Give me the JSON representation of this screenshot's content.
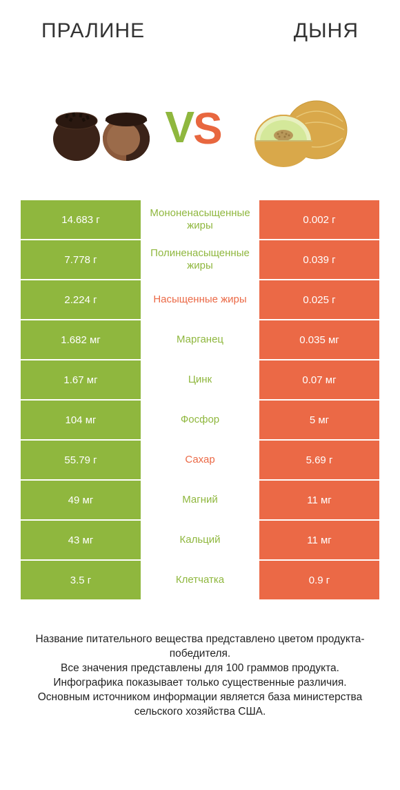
{
  "colors": {
    "green": "#8fb73e",
    "orange": "#eb6946",
    "text": "#333333"
  },
  "header": {
    "left": "ПРАЛИНЕ",
    "right": "ДЫНЯ"
  },
  "vs": {
    "v": "V",
    "s": "S"
  },
  "rows": [
    {
      "left": "14.683 г",
      "mid": "Мононенасыщенные жиры",
      "right": "0.002 г",
      "winner": "left"
    },
    {
      "left": "7.778 г",
      "mid": "Полиненасыщенные жиры",
      "right": "0.039 г",
      "winner": "left"
    },
    {
      "left": "2.224 г",
      "mid": "Насыщенные жиры",
      "right": "0.025 г",
      "winner": "right"
    },
    {
      "left": "1.682 мг",
      "mid": "Марганец",
      "right": "0.035 мг",
      "winner": "left"
    },
    {
      "left": "1.67 мг",
      "mid": "Цинк",
      "right": "0.07 мг",
      "winner": "left"
    },
    {
      "left": "104 мг",
      "mid": "Фосфор",
      "right": "5 мг",
      "winner": "left"
    },
    {
      "left": "55.79 г",
      "mid": "Сахар",
      "right": "5.69 г",
      "winner": "right"
    },
    {
      "left": "49 мг",
      "mid": "Магний",
      "right": "11 мг",
      "winner": "left"
    },
    {
      "left": "43 мг",
      "mid": "Кальций",
      "right": "11 мг",
      "winner": "left"
    },
    {
      "left": "3.5 г",
      "mid": "Клетчатка",
      "right": "0.9 г",
      "winner": "left"
    }
  ],
  "footer": {
    "l1": "Название питательного вещества представлено цветом продукта-победителя.",
    "l2": "Все значения представлены для 100 граммов продукта.",
    "l3": "Инфографика показывает только существенные различия.",
    "l4": "Основным источником информации является база министерства сельского хозяйства США."
  }
}
